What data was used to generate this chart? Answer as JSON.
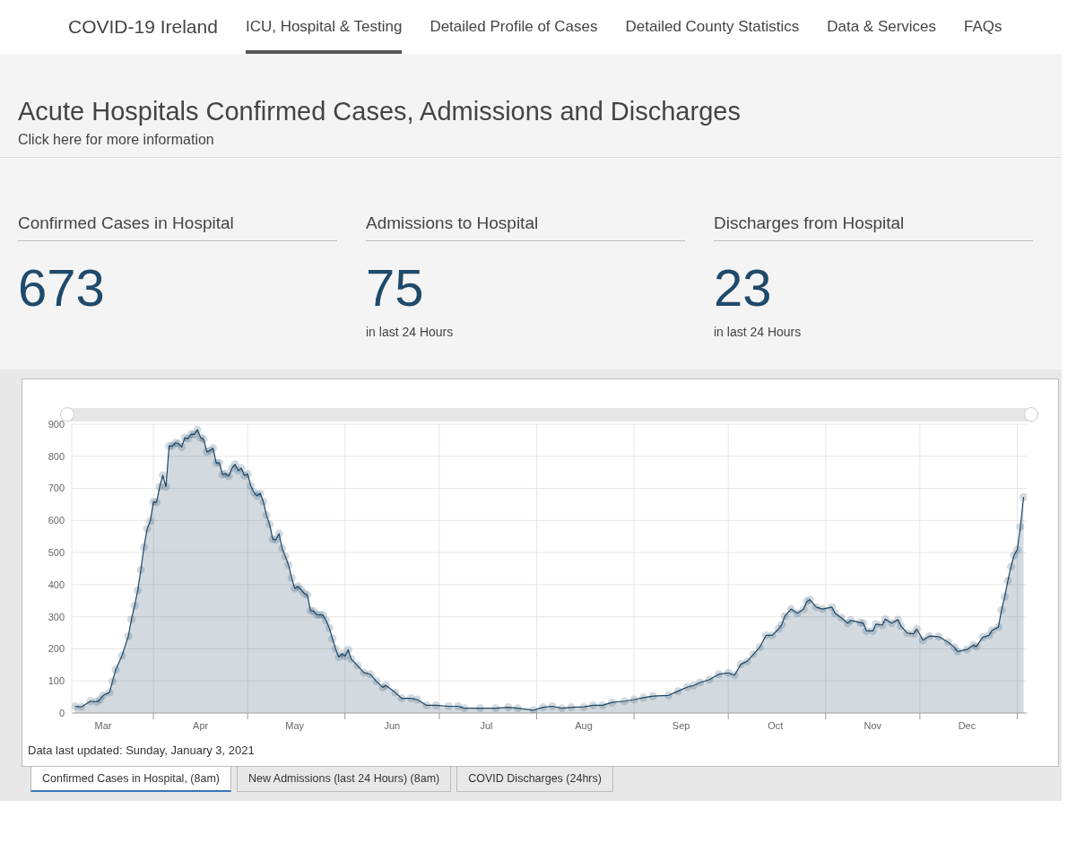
{
  "chart_data": [
    {
      "type": "other",
      "title": "COVID-19 Ireland",
      "annotations": [
        "ICU, Hospital & Testing",
        "Detailed Profile of Cases",
        "Detailed County Statistics",
        "Data & Services",
        "FAQs"
      ]
    },
    {
      "type": "other",
      "title": "Acute Hospitals Confirmed Cases, Admissions and Discharges",
      "subtitle": "Click here for more information"
    },
    {
      "type": "other",
      "title": "Confirmed Cases in Hospital",
      "annotations": [
        "673"
      ]
    },
    {
      "type": "other",
      "title": "Admissions to Hospital",
      "annotations": [
        "75",
        "in last 24 Hours"
      ]
    },
    {
      "type": "other",
      "title": "Discharges from Hospital",
      "annotations": [
        "23",
        "in last 24 Hours"
      ]
    },
    {
      "type": "area",
      "color": "#1d4766",
      "marker": "circle",
      "line_style": "solid",
      "grid": true,
      "x": [
        "2020-03-07",
        "2020-03-09",
        "2020-03-12",
        "2020-03-14",
        "2020-03-15",
        "2020-03-16",
        "2020-03-18",
        "2020-03-19",
        "2020-03-20",
        "2020-03-22",
        "2020-03-24",
        "2020-03-25",
        "2020-03-26",
        "2020-03-27",
        "2020-03-28",
        "2020-03-29",
        "2020-03-30",
        "2020-03-31",
        "2020-04-01",
        "2020-04-02",
        "2020-04-03",
        "2020-04-04",
        "2020-04-05",
        "2020-04-06",
        "2020-04-07",
        "2020-04-08",
        "2020-04-09",
        "2020-04-10",
        "2020-04-11",
        "2020-04-12",
        "2020-04-13",
        "2020-04-14",
        "2020-04-15",
        "2020-04-16",
        "2020-04-17",
        "2020-04-18",
        "2020-04-19",
        "2020-04-20",
        "2020-04-21",
        "2020-04-22",
        "2020-04-23",
        "2020-04-24",
        "2020-04-25",
        "2020-04-26",
        "2020-04-27",
        "2020-04-28",
        "2020-04-29",
        "2020-04-30",
        "2020-05-01",
        "2020-05-02",
        "2020-05-03",
        "2020-05-04",
        "2020-05-05",
        "2020-05-06",
        "2020-05-07",
        "2020-05-08",
        "2020-05-09",
        "2020-05-10",
        "2020-05-11",
        "2020-05-12",
        "2020-05-13",
        "2020-05-14",
        "2020-05-15",
        "2020-05-16",
        "2020-05-17",
        "2020-05-18",
        "2020-05-19",
        "2020-05-20",
        "2020-05-21",
        "2020-05-22",
        "2020-05-23",
        "2020-05-24",
        "2020-05-25",
        "2020-05-26",
        "2020-05-27",
        "2020-05-28",
        "2020-05-29",
        "2020-05-30",
        "2020-05-31",
        "2020-06-01",
        "2020-06-02",
        "2020-06-03",
        "2020-06-05",
        "2020-06-07",
        "2020-06-09",
        "2020-06-11",
        "2020-06-13",
        "2020-06-14",
        "2020-06-17",
        "2020-06-19",
        "2020-06-22",
        "2020-06-24",
        "2020-06-27",
        "2020-06-30",
        "2020-07-04",
        "2020-07-07",
        "2020-07-09",
        "2020-07-14",
        "2020-07-19",
        "2020-07-23",
        "2020-07-26",
        "2020-07-31",
        "2020-08-03",
        "2020-08-06",
        "2020-08-09",
        "2020-08-12",
        "2020-08-16",
        "2020-08-19",
        "2020-08-22",
        "2020-08-25",
        "2020-08-29",
        "2020-09-01",
        "2020-09-04",
        "2020-09-07",
        "2020-09-12",
        "2020-09-15",
        "2020-09-18",
        "2020-09-20",
        "2020-09-22",
        "2020-09-25",
        "2020-09-28",
        "2020-10-01",
        "2020-10-03",
        "2020-10-05",
        "2020-10-07",
        "2020-10-09",
        "2020-10-11",
        "2020-10-13",
        "2020-10-15",
        "2020-10-17",
        "2020-10-18",
        "2020-10-19",
        "2020-10-21",
        "2020-10-23",
        "2020-10-25",
        "2020-10-26",
        "2020-10-27",
        "2020-10-29",
        "2020-10-31",
        "2020-11-03",
        "2020-11-04",
        "2020-11-06",
        "2020-11-08",
        "2020-11-09",
        "2020-11-12",
        "2020-11-13",
        "2020-11-14",
        "2020-11-16",
        "2020-11-17",
        "2020-11-19",
        "2020-11-20",
        "2020-11-22",
        "2020-11-24",
        "2020-11-25",
        "2020-11-27",
        "2020-11-29",
        "2020-11-30",
        "2020-12-02",
        "2020-12-04",
        "2020-12-07",
        "2020-12-10",
        "2020-12-12",
        "2020-12-13",
        "2020-12-16",
        "2020-12-18",
        "2020-12-19",
        "2020-12-21",
        "2020-12-23",
        "2020-12-24",
        "2020-12-26",
        "2020-12-27",
        "2020-12-28",
        "2020-12-29",
        "2020-12-30",
        "2020-12-31",
        "2021-01-01",
        "2021-01-02",
        "2021-01-03"
      ],
      "values": [
        21,
        19,
        37,
        35,
        42,
        55,
        64,
        99,
        135,
        179,
        239,
        292,
        334,
        382,
        446,
        517,
        574,
        598,
        658,
        657,
        705,
        741,
        705,
        832,
        832,
        842,
        840,
        829,
        858,
        855,
        869,
        868,
        883,
        858,
        853,
        814,
        818,
        825,
        779,
        780,
        743,
        746,
        738,
        763,
        775,
        755,
        763,
        740,
        745,
        708,
        688,
        677,
        685,
        659,
        616,
        588,
        542,
        540,
        559,
        513,
        488,
        462,
        421,
        388,
        395,
        385,
        373,
        368,
        319,
        318,
        306,
        306,
        305,
        288,
        265,
        232,
        200,
        174,
        185,
        177,
        197,
        168,
        148,
        126,
        121,
        99,
        80,
        86,
        64,
        46,
        46,
        42,
        24,
        24,
        21,
        21,
        15,
        15,
        15,
        18,
        15,
        9,
        18,
        21,
        15,
        18,
        19,
        24,
        24,
        33,
        37,
        42,
        48,
        53,
        55,
        68,
        81,
        86,
        95,
        104,
        121,
        125,
        118,
        152,
        161,
        183,
        205,
        242,
        242,
        262,
        275,
        302,
        324,
        311,
        324,
        348,
        353,
        330,
        324,
        330,
        311,
        297,
        280,
        289,
        282,
        280,
        256,
        256,
        277,
        274,
        293,
        280,
        291,
        271,
        249,
        247,
        262,
        227,
        240,
        238,
        221,
        205,
        192,
        198,
        212,
        207,
        236,
        242,
        258,
        268,
        321,
        362,
        412,
        456,
        492,
        509,
        580,
        673
      ],
      "xlim": [
        "2020-03-06",
        "2021-01-04"
      ],
      "xticks": [
        {
          "value": "2020-03-16",
          "label": "Mar"
        },
        {
          "value": "2020-04-01",
          "label": null
        },
        {
          "value": "2020-04-16",
          "label": "Apr"
        },
        {
          "value": "2020-05-01",
          "label": null
        },
        {
          "value": "2020-05-16",
          "label": "May"
        },
        {
          "value": "2020-06-01",
          "label": null
        },
        {
          "value": "2020-06-16",
          "label": "Jun"
        },
        {
          "value": "2020-07-01",
          "label": null
        },
        {
          "value": "2020-07-16",
          "label": "Jul"
        },
        {
          "value": "2020-08-01",
          "label": null
        },
        {
          "value": "2020-08-16",
          "label": "Aug"
        },
        {
          "value": "2020-09-01",
          "label": null
        },
        {
          "value": "2020-09-16",
          "label": "Sep"
        },
        {
          "value": "2020-10-01",
          "label": null
        },
        {
          "value": "2020-10-16",
          "label": "Oct"
        },
        {
          "value": "2020-11-01",
          "label": null
        },
        {
          "value": "2020-11-16",
          "label": "Nov"
        },
        {
          "value": "2020-12-01",
          "label": null
        },
        {
          "value": "2020-12-16",
          "label": "Dec"
        },
        {
          "value": "2021-01-01",
          "label": null
        }
      ],
      "ylim": [
        0,
        900
      ],
      "yticks": [
        0,
        100,
        200,
        300,
        400,
        500,
        600,
        700,
        800,
        900
      ],
      "annotations": [
        "Data last updated: Sunday, January 3, 2021",
        "Confirmed Cases in Hospital, (8am)",
        "New Admissions (last 24 Hours) (8am)",
        "COVID Discharges (24hrs)"
      ]
    }
  ]
}
